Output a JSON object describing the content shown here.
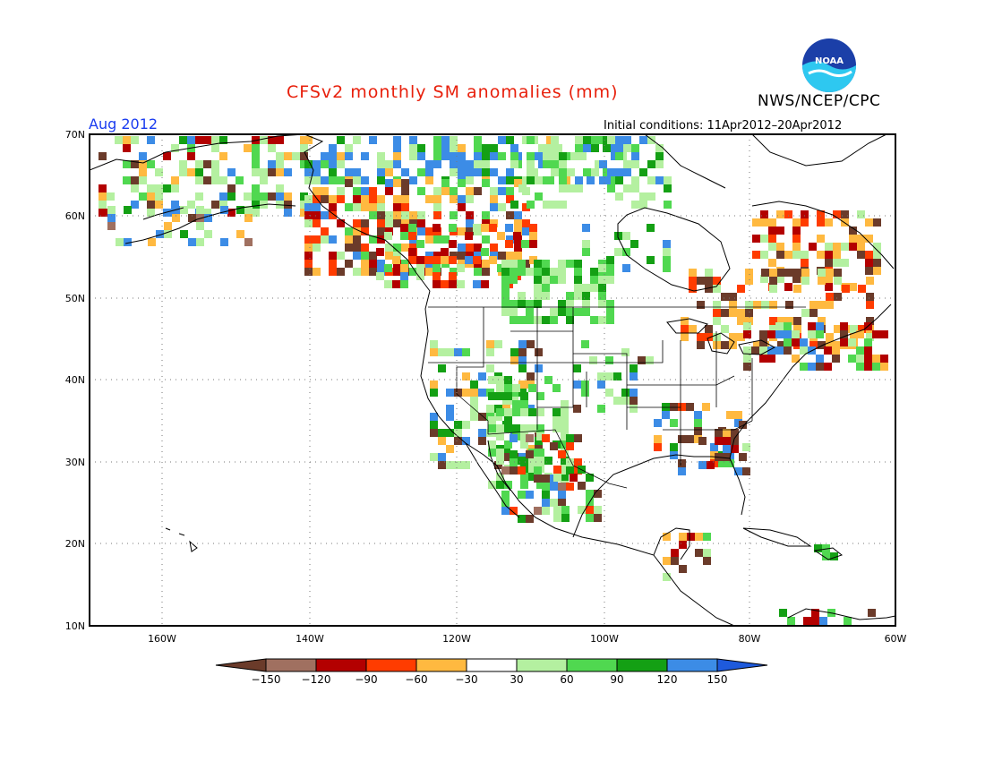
{
  "title": "CFSv2 monthly SM anomalies (mm)",
  "agency": "NWS/NCEP/CPC",
  "logo_text": "NOAA",
  "valid_month": "Aug 2012",
  "initial_conditions": "Initial conditions: 11Apr2012–20Apr2012",
  "lat_labels": [
    "70N",
    "60N",
    "50N",
    "40N",
    "30N",
    "20N",
    "10N"
  ],
  "lon_labels": [
    "160W",
    "140W",
    "120W",
    "100W",
    "80W",
    "60W"
  ],
  "colorbar": {
    "labels": [
      "−150",
      "−120",
      "−90",
      "−60",
      "−30",
      "30",
      "60",
      "90",
      "120",
      "150"
    ],
    "colors": [
      "#6b3b2a",
      "#a07060",
      "#b30000",
      "#ff3c00",
      "#ffb940",
      "#ffffff",
      "#b4f0a0",
      "#50d850",
      "#14a014",
      "#3c8ce6",
      "#1e5adc"
    ]
  },
  "colors": {
    "title": "#e8200c",
    "month": "#1a3cf0"
  }
}
